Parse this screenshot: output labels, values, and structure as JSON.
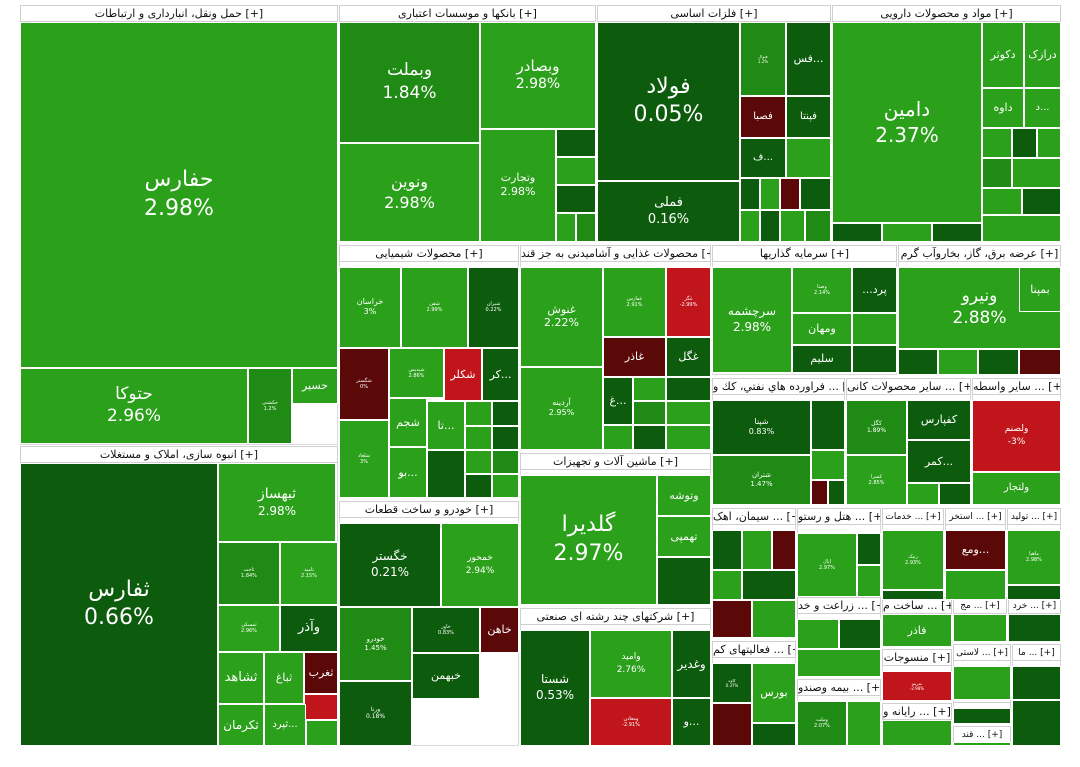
{
  "chart_data": {
    "type": "treemap",
    "colors": {
      "strong_green": "#2ba01a",
      "green": "#1f8a14",
      "dark_green": "#0d5c0d",
      "dark_red": "#5a0808",
      "red": "#c0161b"
    },
    "groups": [
      {
        "name": "حمل ونقل، انبارداری و ارتباطات [+]",
        "tiles": [
          {
            "symbol": "حفارس",
            "change": "2.98%"
          },
          {
            "symbol": "حتوکا",
            "change": "2.96%"
          },
          {
            "symbol": "حسیر",
            "change": ""
          },
          {
            "symbol": "حکشتی",
            "change": "1.2%"
          }
        ]
      },
      {
        "name": "بانکها و موسسات اعتباری [+]",
        "tiles": [
          {
            "symbol": "وبملت",
            "change": "1.84%"
          },
          {
            "symbol": "وبصادر",
            "change": "2.98%"
          },
          {
            "symbol": "ونوین",
            "change": "2.98%"
          },
          {
            "symbol": "وتجارت",
            "change": "2.98%"
          }
        ]
      },
      {
        "name": "فلزات اساسی [+]",
        "tiles": [
          {
            "symbol": "فولاد",
            "change": "0.05%"
          },
          {
            "symbol": "فملی",
            "change": "0.16%"
          },
          {
            "symbol": "فس...",
            "change": ""
          },
          {
            "symbol": "فپنتا",
            "change": ""
          },
          {
            "symbol": "فصبا",
            "change": ""
          },
          {
            "symbol": "ف...",
            "change": ""
          },
          {
            "symbol": "فنوال",
            "change": "1.2%"
          }
        ]
      },
      {
        "name": "مواد و محصولات دارویی [+]",
        "tiles": [
          {
            "symbol": "دامین",
            "change": "2.37%"
          },
          {
            "symbol": "دکوثر",
            "change": ""
          },
          {
            "symbol": "درازک",
            "change": ""
          },
          {
            "symbol": "داوه",
            "change": ""
          },
          {
            "symbol": "د...",
            "change": ""
          }
        ]
      },
      {
        "name": "انبوه سازی، املاک و مستغلات [+]",
        "tiles": [
          {
            "symbol": "ثفارس",
            "change": "0.66%"
          },
          {
            "symbol": "ثبهساز",
            "change": "2.98%"
          },
          {
            "symbol": "ثاخت",
            "change": "1.84%"
          },
          {
            "symbol": "ثامید",
            "change": "2.15%"
          },
          {
            "symbol": "ثمسکن",
            "change": "2.96%"
          },
          {
            "symbol": "وآذر",
            "change": ""
          },
          {
            "symbol": "ثشاهد",
            "change": ""
          },
          {
            "symbol": "ثباغ",
            "change": ""
          },
          {
            "symbol": "ثغرب",
            "change": ""
          },
          {
            "symbol": "ثکرمان",
            "change": ""
          },
          {
            "symbol": "ثپرد...",
            "change": ""
          }
        ]
      },
      {
        "name": "محصولات شیمیایی [+]",
        "tiles": [
          {
            "symbol": "خراسان",
            "change": "3%"
          },
          {
            "symbol": "شفن",
            "change": "2.99%"
          },
          {
            "symbol": "شیران",
            "change": "0.22%"
          },
          {
            "symbol": "شگستر",
            "change": "0%"
          },
          {
            "symbol": "شپدیس",
            "change": "2.86%"
          },
          {
            "symbol": "شکلر",
            "change": ""
          },
          {
            "symbol": "کر...",
            "change": ""
          },
          {
            "symbol": "شجم",
            "change": ""
          },
          {
            "symbol": "تا...",
            "change": ""
          },
          {
            "symbol": "شلعاد",
            "change": "3%"
          },
          {
            "symbol": "بو...",
            "change": ""
          }
        ]
      },
      {
        "name": "محصولات غذایی و آشامیدنی به جز قند [+]",
        "tiles": [
          {
            "symbol": "غنوش",
            "change": "2.22%"
          },
          {
            "symbol": "غفارس",
            "change": "2.91%"
          },
          {
            "symbol": "غگز",
            "change": "-2.99%"
          },
          {
            "symbol": "غاذر",
            "change": ""
          },
          {
            "symbol": "غگل",
            "change": ""
          },
          {
            "symbol": "آردینه",
            "change": "2.95%"
          },
          {
            "symbol": "غ...",
            "change": ""
          }
        ]
      },
      {
        "name": "سرمایه گذاریها [+]",
        "tiles": [
          {
            "symbol": "سرچشمه",
            "change": "2.98%"
          },
          {
            "symbol": "وصنا",
            "change": "2.14%"
          },
          {
            "symbol": "...پرد",
            "change": ""
          },
          {
            "symbol": "ومهان",
            "change": ""
          },
          {
            "symbol": "سلیم",
            "change": ""
          }
        ]
      },
      {
        "name": "عرضه برق، گاز، بخاروآب گرم [+]",
        "tiles": [
          {
            "symbol": "ونیرو",
            "change": "2.88%"
          },
          {
            "symbol": "بمپنا",
            "change": ""
          }
        ]
      },
      {
        "name": "فراورده هاي نفتي، كك و ... [+]",
        "tiles": [
          {
            "symbol": "شپنا",
            "change": "0.83%"
          },
          {
            "symbol": "شتران",
            "change": "1.47%"
          }
        ]
      },
      {
        "name": "سایر محصولات کانی ... [+]",
        "tiles": [
          {
            "symbol": "کگل",
            "change": "1.89%"
          },
          {
            "symbol": "کفپارس",
            "change": ""
          },
          {
            "symbol": "کمر...",
            "change": ""
          },
          {
            "symbol": "کسرا",
            "change": "2.85%"
          }
        ]
      },
      {
        "name": "سایر واسطه ... [+]",
        "tiles": [
          {
            "symbol": "ولصنم",
            "change": "-3%"
          },
          {
            "symbol": "ولتجار",
            "change": ""
          }
        ]
      },
      {
        "name": "ماشین آلات و تجهیزات [+]",
        "tiles": [
          {
            "symbol": "گلدیرا",
            "change": "2.97%"
          },
          {
            "symbol": "وتوشه",
            "change": ""
          },
          {
            "symbol": "تهمپی",
            "change": ""
          }
        ]
      },
      {
        "name": "خودرو و ساخت قطعات [+]",
        "tiles": [
          {
            "symbol": "خگستر",
            "change": "0.21%"
          },
          {
            "symbol": "خمحور",
            "change": "2.94%"
          },
          {
            "symbol": "خودرو",
            "change": "1.45%"
          },
          {
            "symbol": "خاور",
            "change": "0.83%"
          },
          {
            "symbol": "خاهن",
            "change": ""
          },
          {
            "symbol": "خبهمن",
            "change": ""
          },
          {
            "symbol": "ورنا",
            "change": "0.18%"
          }
        ]
      },
      {
        "name": "شرکتهای چند رشته ای صنعتی [+]",
        "tiles": [
          {
            "symbol": "شستا",
            "change": "0.53%"
          },
          {
            "symbol": "وامید",
            "change": "2.76%"
          },
          {
            "symbol": "وغدیر",
            "change": ""
          },
          {
            "symbol": "ومعادن",
            "change": "-2.91%"
          },
          {
            "symbol": "و...",
            "change": ""
          }
        ]
      },
      {
        "name": "سیمان، اهک ... [+]",
        "tiles": []
      },
      {
        "name": "هتل و رستو ... [+]",
        "tiles": [
          {
            "symbol": "اپال",
            "change": "2.97%"
          }
        ]
      },
      {
        "name": "خدمات ... [+]",
        "tiles": [
          {
            "symbol": "رنیک",
            "change": "2.93%"
          }
        ]
      },
      {
        "name": "استخر ... [+]",
        "tiles": [
          {
            "symbol": "ومع...",
            "change": ""
          }
        ]
      },
      {
        "name": "تولید ... [+]",
        "tiles": [
          {
            "symbol": "ماهیا",
            "change": "2.98%"
          }
        ]
      },
      {
        "name": "فعالیتهای کم ... [+]",
        "tiles": [
          {
            "symbol": "کاوه",
            "change": "0.37%"
          },
          {
            "symbol": "بورس",
            "change": ""
          }
        ]
      },
      {
        "name": "زراعت و خد ... [+]",
        "tiles": []
      },
      {
        "name": "ساخت م ... [+]",
        "tiles": [
          {
            "symbol": "فاذر",
            "change": ""
          }
        ]
      },
      {
        "name": "مج ... [+]",
        "tiles": []
      },
      {
        "name": "خرد ... [+]",
        "tiles": []
      },
      {
        "name": "منسوجات [+]",
        "tiles": [
          {
            "symbol": "نمرینو",
            "change": "-2.98%"
          }
        ]
      },
      {
        "name": "لاستی ... [+]",
        "tiles": []
      },
      {
        "name": "ما ... [+]",
        "tiles": []
      },
      {
        "name": "بیمه وصندو ... [+]",
        "tiles": [
          {
            "symbol": "وملت",
            "change": "2.07%"
          }
        ]
      },
      {
        "name": "کا ... [+]",
        "tiles": []
      },
      {
        "name": "رایانه و ... [+]",
        "tiles": []
      },
      {
        "name": "قند ... [+]",
        "tiles": []
      }
    ]
  }
}
